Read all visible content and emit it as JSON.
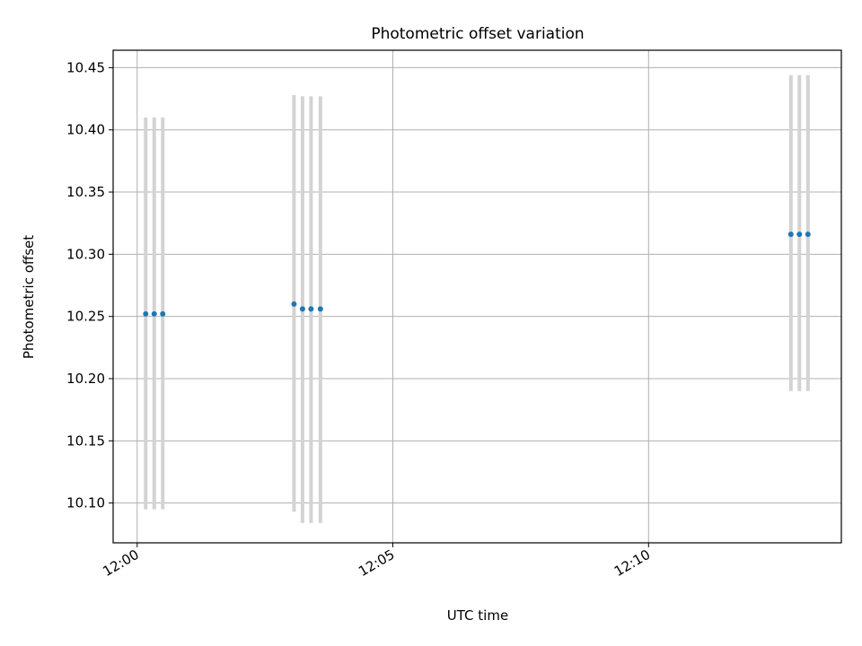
{
  "chart_data": {
    "type": "scatter",
    "title": "Photometric offset variation",
    "xlabel": "UTC time",
    "ylabel": "Photometric offset",
    "x_ticks": [
      "12:00",
      "12:05",
      "12:10"
    ],
    "y_ticks": [
      "10.10",
      "10.15",
      "10.20",
      "10.25",
      "10.30",
      "10.35",
      "10.40",
      "10.45"
    ],
    "x_range_minutes_after_1200": [
      -0.47,
      13.77
    ],
    "ylim": [
      10.068,
      10.464
    ],
    "grid": true,
    "marker_color": "#1f77b4",
    "errorbar_color": "#d3d3d3",
    "points": [
      {
        "t": "12:00:10",
        "y": 10.252,
        "yerr_low": 10.095,
        "yerr_high": 10.41
      },
      {
        "t": "12:00:20",
        "y": 10.252,
        "yerr_low": 10.095,
        "yerr_high": 10.41
      },
      {
        "t": "12:00:30",
        "y": 10.252,
        "yerr_low": 10.095,
        "yerr_high": 10.41
      },
      {
        "t": "12:03:04",
        "y": 10.26,
        "yerr_low": 10.093,
        "yerr_high": 10.428
      },
      {
        "t": "12:03:14",
        "y": 10.256,
        "yerr_low": 10.084,
        "yerr_high": 10.427
      },
      {
        "t": "12:03:24",
        "y": 10.256,
        "yerr_low": 10.084,
        "yerr_high": 10.427
      },
      {
        "t": "12:03:35",
        "y": 10.256,
        "yerr_low": 10.084,
        "yerr_high": 10.427
      },
      {
        "t": "12:12:47",
        "y": 10.316,
        "yerr_low": 10.19,
        "yerr_high": 10.444
      },
      {
        "t": "12:12:57",
        "y": 10.316,
        "yerr_low": 10.19,
        "yerr_high": 10.444
      },
      {
        "t": "12:13:07",
        "y": 10.316,
        "yerr_low": 10.19,
        "yerr_high": 10.444
      }
    ]
  }
}
